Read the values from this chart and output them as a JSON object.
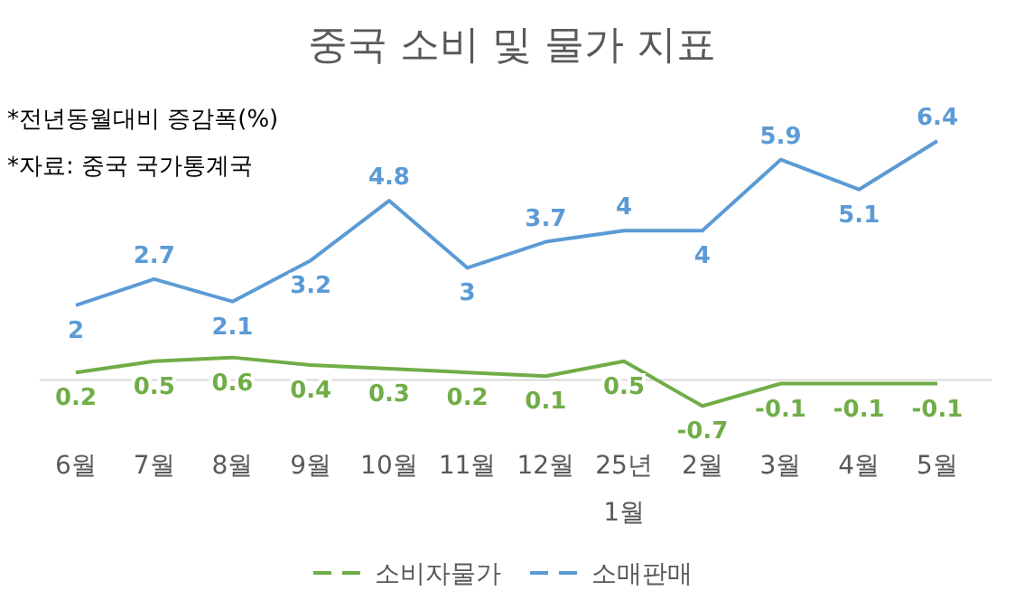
{
  "chart_data": {
    "type": "line",
    "title": "중국 소비 및 물가 지표",
    "annotations": [
      "*전년동월대비 증감폭(%)",
      "*자료: 중국 국가통계국"
    ],
    "categories": [
      "6월",
      "7월",
      "8월",
      "9월",
      "10월",
      "11월",
      "12월",
      "25년 1월",
      "2월",
      "3월",
      "4월",
      "5월"
    ],
    "series": [
      {
        "name": "소비자물가",
        "color": "#70ad47",
        "values": [
          0.2,
          0.5,
          0.6,
          0.4,
          0.3,
          0.2,
          0.1,
          0.5,
          -0.7,
          -0.1,
          -0.1,
          -0.1
        ]
      },
      {
        "name": "소매판매",
        "color": "#5b9bd5",
        "values": [
          2,
          2.7,
          2.1,
          3.2,
          4.8,
          3,
          3.7,
          4,
          4,
          5.9,
          5.1,
          6.4
        ]
      }
    ],
    "data_labels": true,
    "legend": "bottom",
    "line_style": "solid"
  }
}
